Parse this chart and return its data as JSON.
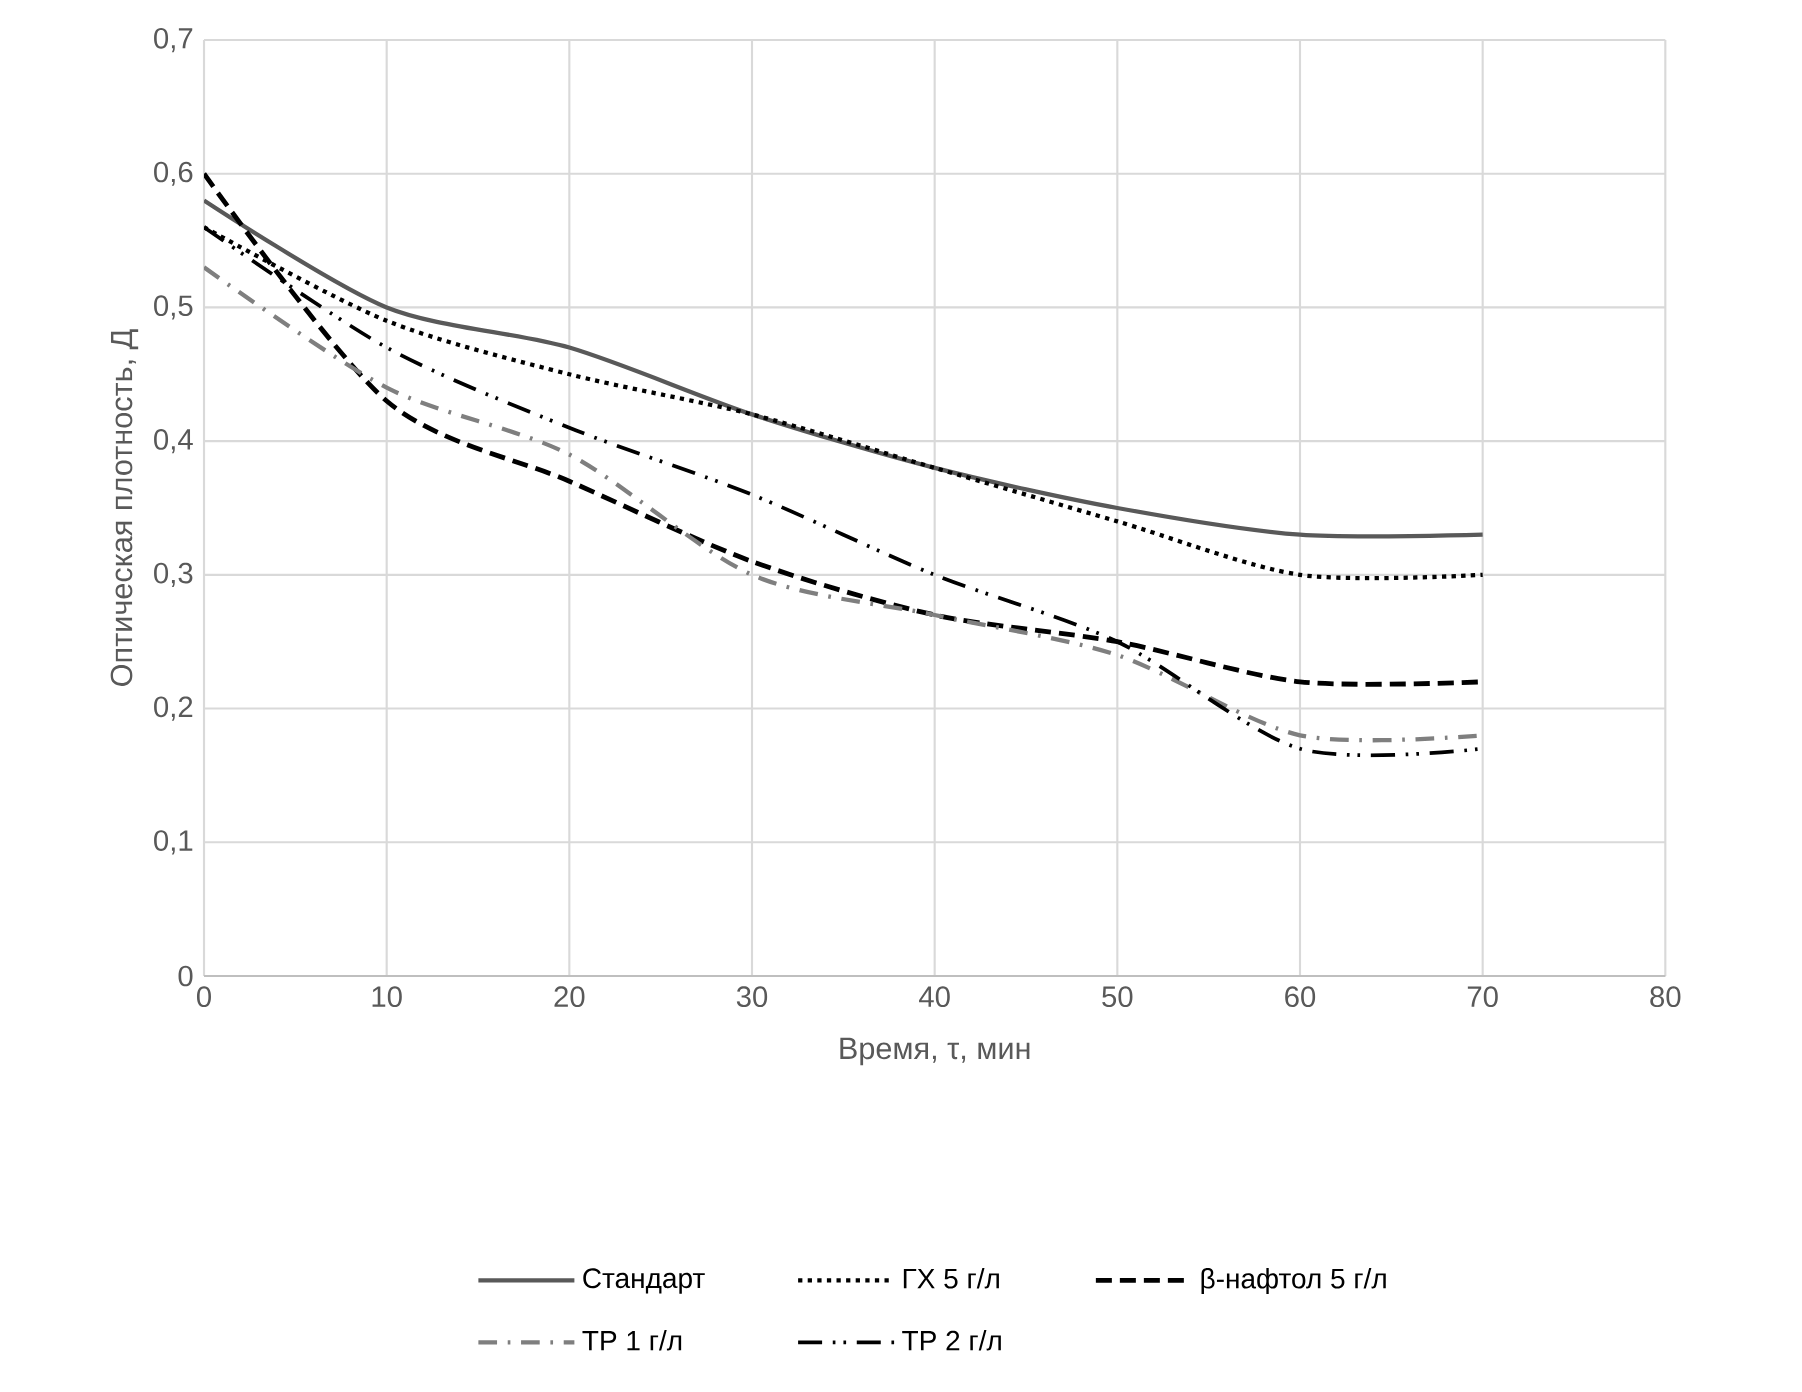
{
  "chart_data": {
    "type": "line",
    "xlabel": "Время, τ, мин",
    "ylabel": "Оптическая плотность, Д",
    "x": [
      0,
      10,
      20,
      30,
      40,
      50,
      60,
      70
    ],
    "series": [
      {
        "name": "Стандарт",
        "color": "#595959",
        "line_style": "solid",
        "values": [
          0.58,
          0.5,
          0.47,
          0.42,
          0.38,
          0.35,
          0.33,
          0.33
        ]
      },
      {
        "name": "ГХ 5 г/л",
        "color": "#000000",
        "line_style": "dotted",
        "values": [
          0.56,
          0.49,
          0.45,
          0.42,
          0.38,
          0.34,
          0.3,
          0.3
        ]
      },
      {
        "name": "β-нафтол 5 г/л",
        "color": "#000000",
        "line_style": "dashed",
        "values": [
          0.6,
          0.43,
          0.37,
          0.31,
          0.27,
          0.25,
          0.22,
          0.22
        ]
      },
      {
        "name": "ТР 1 г/л",
        "color": "#7f7f7f",
        "line_style": "dashdot",
        "values": [
          0.53,
          0.44,
          0.39,
          0.3,
          0.27,
          0.24,
          0.18,
          0.18
        ]
      },
      {
        "name": "ТР 2 г/л",
        "color": "#000000",
        "line_style": "dashdotdot",
        "values": [
          0.56,
          0.47,
          0.41,
          0.36,
          0.3,
          0.25,
          0.17,
          0.17
        ]
      }
    ],
    "xlim": [
      0,
      80
    ],
    "xticks": [
      0,
      10,
      20,
      30,
      40,
      50,
      60,
      70,
      80
    ],
    "ylim": [
      0,
      0.7
    ],
    "yticks": [
      {
        "value": 0,
        "label": "0"
      },
      {
        "value": 0.1,
        "label": "0,1"
      },
      {
        "value": 0.2,
        "label": "0,2"
      },
      {
        "value": 0.3,
        "label": "0,3"
      },
      {
        "value": 0.4,
        "label": "0,4"
      },
      {
        "value": 0.5,
        "label": "0,5"
      },
      {
        "value": 0.6,
        "label": "0,6"
      },
      {
        "value": 0.7,
        "label": "0,7"
      }
    ],
    "grid": true,
    "legend": "bottom",
    "marker": "none"
  }
}
